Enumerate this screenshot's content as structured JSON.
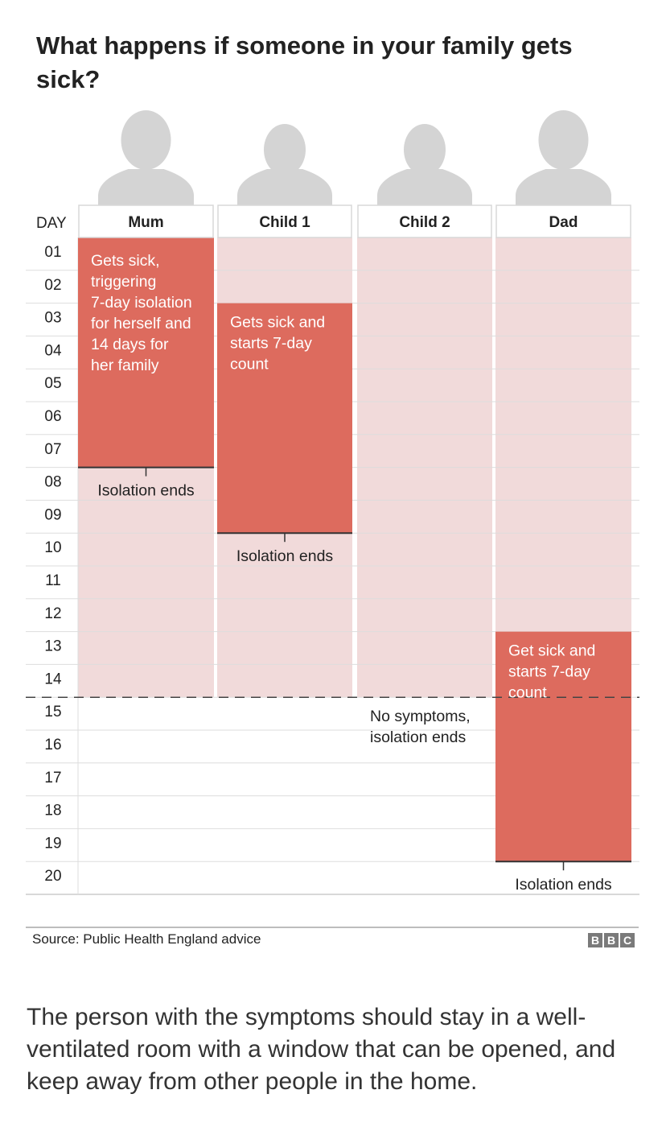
{
  "title": "What happens if someone in your family gets sick?",
  "day_header": "DAY",
  "days": [
    "01",
    "02",
    "03",
    "04",
    "05",
    "06",
    "07",
    "08",
    "09",
    "10",
    "11",
    "12",
    "13",
    "14",
    "15",
    "16",
    "17",
    "18",
    "19",
    "20"
  ],
  "members": [
    {
      "name": "Mum",
      "family_isolation_days": [
        1,
        14
      ],
      "sick_isolation_days": [
        1,
        7
      ],
      "sick_note": [
        "Gets sick,",
        "triggering",
        "7-day isolation",
        "for herself and",
        "14 days for",
        "her family"
      ],
      "end_note": [
        "Isolation ends"
      ]
    },
    {
      "name": "Child 1",
      "family_isolation_days": [
        1,
        14
      ],
      "sick_isolation_days": [
        3,
        9
      ],
      "sick_note": [
        "Gets sick and",
        "starts 7-day",
        "count"
      ],
      "end_note": [
        "Isolation ends"
      ]
    },
    {
      "name": "Child 2",
      "family_isolation_days": [
        1,
        14
      ],
      "sick_isolation_days": null,
      "sick_note": [],
      "end_note": [
        "No symptoms,",
        "isolation ends"
      ]
    },
    {
      "name": "Dad",
      "family_isolation_days": [
        1,
        14
      ],
      "sick_isolation_days": [
        13,
        19
      ],
      "sick_note": [
        "Get sick and",
        "starts 7-day",
        "count"
      ],
      "end_note": [
        "Isolation ends"
      ]
    }
  ],
  "colors": {
    "sick": "#dd6b5e",
    "family": "#f1dada",
    "silhouette": "#d4d4d4",
    "grid": "#dddddd",
    "dashed": "#444444"
  },
  "source": "Source: Public Health England advice",
  "logo": [
    "B",
    "B",
    "C"
  ],
  "caption": "The person with the symptoms should stay in a well-ventilated room with a window that can be opened, and keep away from other people in the home."
}
